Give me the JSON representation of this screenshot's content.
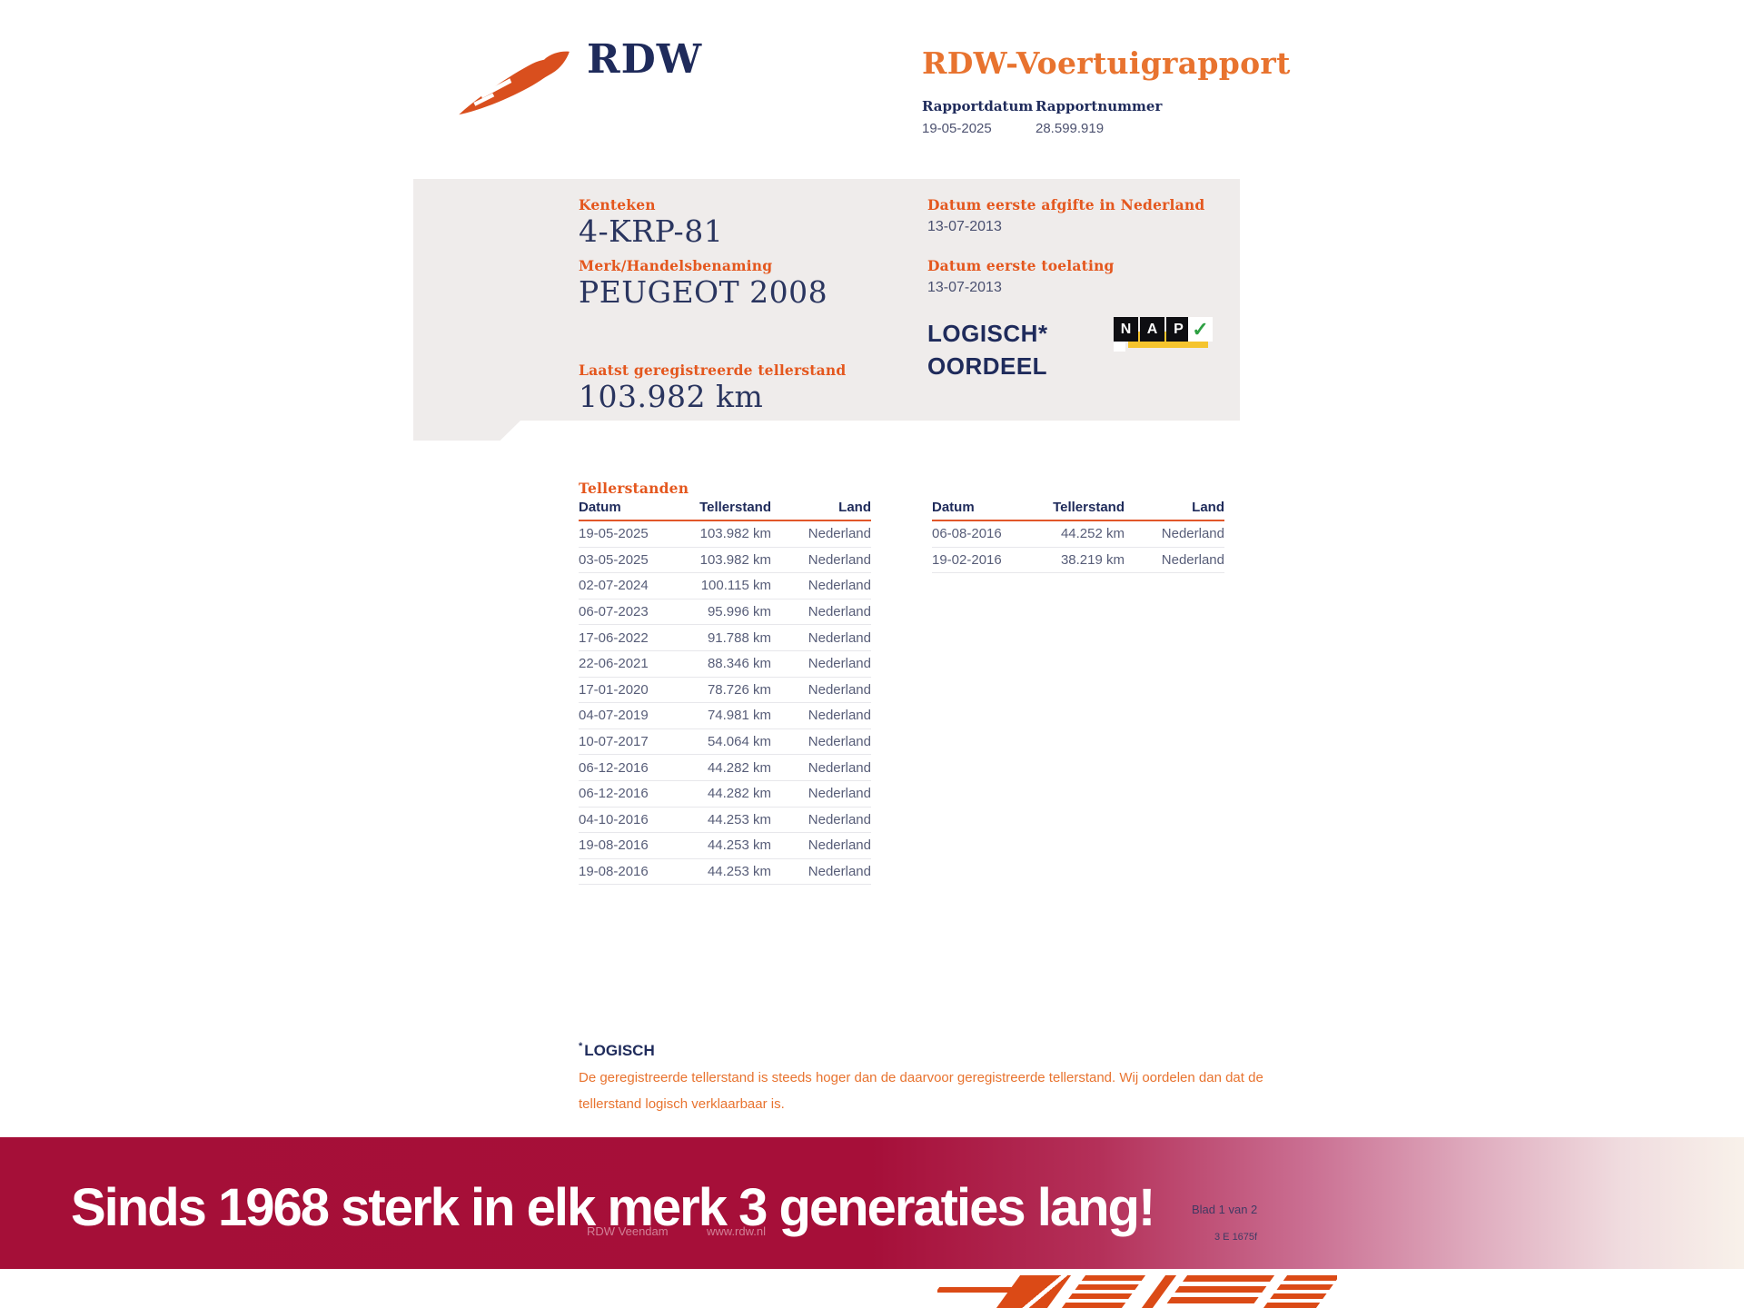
{
  "header": {
    "brand": "RDW",
    "title": "RDW-Voertuigrapport",
    "report_date": {
      "label": "Rapportdatum",
      "value": "19-05-2025"
    },
    "report_number": {
      "label": "Rapportnummer",
      "value": "28.599.919"
    }
  },
  "summary": {
    "kenteken": {
      "label": "Kenteken",
      "value": "4-KRP-81"
    },
    "merk": {
      "label": "Merk/Handelsbenaming",
      "value": "PEUGEOT 2008"
    },
    "tellerstand": {
      "label": "Laatst geregistreerde tellerstand",
      "value": "103.982 km"
    },
    "eerste_afgifte": {
      "label": "Datum eerste afgifte in Nederland",
      "value": "13-07-2013"
    },
    "eerste_toelating": {
      "label": "Datum eerste toelating",
      "value": "13-07-2013"
    },
    "oordeel": {
      "line1": "LOGISCH*",
      "line2": "OORDEEL"
    },
    "nap_logo": {
      "letters": [
        "N",
        "A",
        "P"
      ],
      "check": "✓"
    }
  },
  "tellerstanden": {
    "section_title": "Tellerstanden",
    "headers": [
      "Datum",
      "Tellerstand",
      "Land"
    ],
    "left_rows": [
      {
        "datum": "19-05-2025",
        "tellerstand": "103.982 km",
        "land": "Nederland"
      },
      {
        "datum": "03-05-2025",
        "tellerstand": "103.982 km",
        "land": "Nederland"
      },
      {
        "datum": "02-07-2024",
        "tellerstand": "100.115 km",
        "land": "Nederland"
      },
      {
        "datum": "06-07-2023",
        "tellerstand": "95.996 km",
        "land": "Nederland"
      },
      {
        "datum": "17-06-2022",
        "tellerstand": "91.788 km",
        "land": "Nederland"
      },
      {
        "datum": "22-06-2021",
        "tellerstand": "88.346 km",
        "land": "Nederland"
      },
      {
        "datum": "17-01-2020",
        "tellerstand": "78.726 km",
        "land": "Nederland"
      },
      {
        "datum": "04-07-2019",
        "tellerstand": "74.981 km",
        "land": "Nederland"
      },
      {
        "datum": "10-07-2017",
        "tellerstand": "54.064 km",
        "land": "Nederland"
      },
      {
        "datum": "06-12-2016",
        "tellerstand": "44.282 km",
        "land": "Nederland"
      },
      {
        "datum": "06-12-2016",
        "tellerstand": "44.282 km",
        "land": "Nederland"
      },
      {
        "datum": "04-10-2016",
        "tellerstand": "44.253 km",
        "land": "Nederland"
      },
      {
        "datum": "19-08-2016",
        "tellerstand": "44.253 km",
        "land": "Nederland"
      },
      {
        "datum": "19-08-2016",
        "tellerstand": "44.253 km",
        "land": "Nederland"
      }
    ],
    "right_rows": [
      {
        "datum": "06-08-2016",
        "tellerstand": "44.252 km",
        "land": "Nederland"
      },
      {
        "datum": "19-02-2016",
        "tellerstand": "38.219 km",
        "land": "Nederland"
      }
    ]
  },
  "footnote": {
    "star": "*",
    "title": "LOGISCH",
    "body": "De geregistreerde tellerstand is steeds hoger dan de daarvoor geregistreerde tellerstand. Wij oordelen dan dat de tellerstand logisch verklaarbaar is."
  },
  "banner": {
    "text": "Sinds 1968 sterk in elk merk 3 generaties lang!"
  },
  "ghost_footer": {
    "office": "RDW Veendam",
    "website": "www.rdw.nl",
    "page": "Blad 1 van 2",
    "form_code": "3 E 1675f"
  },
  "colors": {
    "rdw_orange": "#E4571E",
    "title_orange": "#E8732F",
    "navy": "#1F2B5B",
    "table_text": "#575D78",
    "box_gray": "#EFECEB",
    "banner_red": "#A50F38",
    "nap_yellow": "#F5C42E",
    "nap_green": "#2EA043",
    "dealer_orange": "#DB4A16"
  }
}
